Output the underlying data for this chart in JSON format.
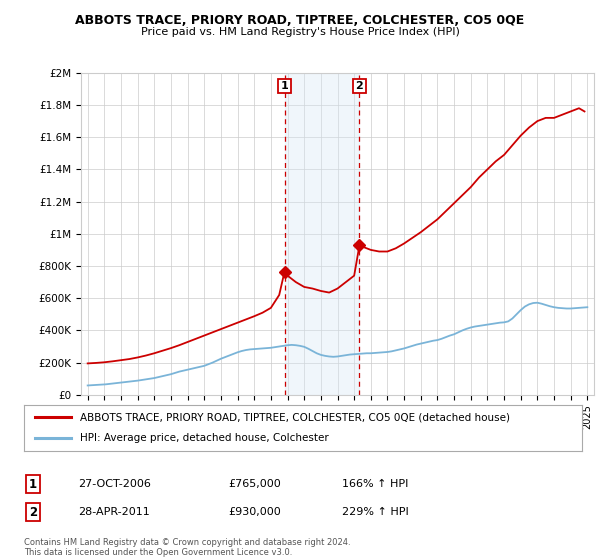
{
  "title": "ABBOTS TRACE, PRIORY ROAD, TIPTREE, COLCHESTER, CO5 0QE",
  "subtitle": "Price paid vs. HM Land Registry's House Price Index (HPI)",
  "legend_line1": "ABBOTS TRACE, PRIORY ROAD, TIPTREE, COLCHESTER, CO5 0QE (detached house)",
  "legend_line2": "HPI: Average price, detached house, Colchester",
  "annotation1_date": "27-OCT-2006",
  "annotation1_price": "£765,000",
  "annotation1_hpi": "166% ↑ HPI",
  "annotation2_date": "28-APR-2011",
  "annotation2_price": "£930,000",
  "annotation2_hpi": "229% ↑ HPI",
  "footer": "Contains HM Land Registry data © Crown copyright and database right 2024.\nThis data is licensed under the Open Government Licence v3.0.",
  "hpi_color": "#7ab4d8",
  "price_color": "#cc0000",
  "vline_color": "#cc0000",
  "shade_color": "#d6e8f5",
  "background_color": "#ffffff",
  "grid_color": "#cccccc",
  "ylim": [
    0,
    2000000
  ],
  "yticks": [
    0,
    200000,
    400000,
    600000,
    800000,
    1000000,
    1200000,
    1400000,
    1600000,
    1800000,
    2000000
  ],
  "ytick_labels": [
    "£0",
    "£200K",
    "£400K",
    "£600K",
    "£800K",
    "£1M",
    "£1.2M",
    "£1.4M",
    "£1.6M",
    "£1.8M",
    "£2M"
  ],
  "hpi_x": [
    1995.0,
    1995.083,
    1995.167,
    1995.25,
    1995.333,
    1995.417,
    1995.5,
    1995.583,
    1995.667,
    1995.75,
    1995.833,
    1995.917,
    1996.0,
    1996.083,
    1996.167,
    1996.25,
    1996.333,
    1996.417,
    1996.5,
    1996.583,
    1996.667,
    1996.75,
    1996.833,
    1996.917,
    1997.0,
    1997.25,
    1997.5,
    1997.75,
    1998.0,
    1998.25,
    1998.5,
    1998.75,
    1999.0,
    1999.25,
    1999.5,
    1999.75,
    2000.0,
    2000.25,
    2000.5,
    2000.75,
    2001.0,
    2001.25,
    2001.5,
    2001.75,
    2002.0,
    2002.25,
    2002.5,
    2002.75,
    2003.0,
    2003.25,
    2003.5,
    2003.75,
    2004.0,
    2004.25,
    2004.5,
    2004.75,
    2005.0,
    2005.25,
    2005.5,
    2005.75,
    2006.0,
    2006.25,
    2006.5,
    2006.75,
    2007.0,
    2007.25,
    2007.5,
    2007.75,
    2008.0,
    2008.25,
    2008.5,
    2008.75,
    2009.0,
    2009.25,
    2009.5,
    2009.75,
    2010.0,
    2010.25,
    2010.5,
    2010.75,
    2011.0,
    2011.25,
    2011.5,
    2011.75,
    2012.0,
    2012.25,
    2012.5,
    2012.75,
    2013.0,
    2013.25,
    2013.5,
    2013.75,
    2014.0,
    2014.25,
    2014.5,
    2014.75,
    2015.0,
    2015.25,
    2015.5,
    2015.75,
    2016.0,
    2016.25,
    2016.5,
    2016.75,
    2017.0,
    2017.25,
    2017.5,
    2017.75,
    2018.0,
    2018.25,
    2018.5,
    2018.75,
    2019.0,
    2019.25,
    2019.5,
    2019.75,
    2020.0,
    2020.25,
    2020.5,
    2020.75,
    2021.0,
    2021.25,
    2021.5,
    2021.75,
    2022.0,
    2022.25,
    2022.5,
    2022.75,
    2023.0,
    2023.25,
    2023.5,
    2023.75,
    2024.0,
    2024.25,
    2024.5,
    2024.75,
    2025.0
  ],
  "hpi_y": [
    58000,
    58500,
    59000,
    59500,
    60000,
    60500,
    61000,
    61500,
    62000,
    62500,
    63000,
    63500,
    64000,
    65000,
    66000,
    67000,
    68000,
    69000,
    70000,
    71000,
    72000,
    73000,
    74000,
    75000,
    76000,
    79000,
    82000,
    85000,
    88000,
    92000,
    96000,
    100000,
    104000,
    110000,
    116000,
    122000,
    128000,
    136000,
    144000,
    150000,
    156000,
    162000,
    168000,
    174000,
    180000,
    190000,
    200000,
    212000,
    224000,
    234000,
    244000,
    254000,
    264000,
    272000,
    278000,
    282000,
    284000,
    286000,
    288000,
    290000,
    292000,
    296000,
    300000,
    304000,
    308000,
    310000,
    308000,
    304000,
    298000,
    286000,
    272000,
    258000,
    248000,
    242000,
    238000,
    236000,
    238000,
    242000,
    246000,
    250000,
    252000,
    254000,
    256000,
    258000,
    258000,
    260000,
    262000,
    264000,
    266000,
    270000,
    276000,
    282000,
    288000,
    296000,
    304000,
    312000,
    318000,
    324000,
    330000,
    336000,
    340000,
    348000,
    358000,
    368000,
    376000,
    388000,
    400000,
    410000,
    418000,
    424000,
    428000,
    432000,
    436000,
    440000,
    444000,
    448000,
    450000,
    456000,
    474000,
    500000,
    526000,
    548000,
    562000,
    570000,
    572000,
    566000,
    558000,
    550000,
    544000,
    540000,
    538000,
    536000,
    536000,
    538000,
    540000,
    542000,
    544000
  ],
  "price_x": [
    1995.0,
    1995.5,
    1996.0,
    1996.5,
    1997.0,
    1997.5,
    1998.0,
    1998.5,
    1999.0,
    1999.5,
    2000.0,
    2000.5,
    2001.0,
    2001.5,
    2002.0,
    2002.5,
    2003.0,
    2003.5,
    2004.0,
    2004.5,
    2005.0,
    2005.5,
    2006.0,
    2006.5,
    2006.82,
    2007.0,
    2007.5,
    2008.0,
    2008.5,
    2009.0,
    2009.5,
    2010.0,
    2010.5,
    2011.0,
    2011.32,
    2011.5,
    2012.0,
    2012.5,
    2013.0,
    2013.5,
    2014.0,
    2014.5,
    2015.0,
    2015.5,
    2016.0,
    2016.5,
    2017.0,
    2017.5,
    2018.0,
    2018.5,
    2019.0,
    2019.5,
    2020.0,
    2020.5,
    2021.0,
    2021.5,
    2022.0,
    2022.5,
    2023.0,
    2023.5,
    2024.0,
    2024.5,
    2024.83
  ],
  "price_y": [
    195000,
    198000,
    202000,
    208000,
    215000,
    222000,
    232000,
    244000,
    258000,
    274000,
    290000,
    308000,
    328000,
    348000,
    368000,
    388000,
    408000,
    428000,
    448000,
    468000,
    488000,
    510000,
    540000,
    620000,
    765000,
    740000,
    700000,
    670000,
    660000,
    645000,
    635000,
    660000,
    700000,
    740000,
    930000,
    920000,
    900000,
    890000,
    890000,
    910000,
    940000,
    975000,
    1010000,
    1050000,
    1090000,
    1140000,
    1190000,
    1240000,
    1290000,
    1350000,
    1400000,
    1450000,
    1490000,
    1550000,
    1610000,
    1660000,
    1700000,
    1720000,
    1720000,
    1740000,
    1760000,
    1780000,
    1760000
  ],
  "sale1_x": 2006.82,
  "sale1_y": 765000,
  "sale2_x": 2011.32,
  "sale2_y": 930000,
  "vline1_x": 2006.82,
  "vline2_x": 2011.32,
  "shade_x1": 2006.82,
  "shade_x2": 2011.32,
  "xlim_left": 1994.6,
  "xlim_right": 2025.4,
  "xtick_years": [
    1995,
    1996,
    1997,
    1998,
    1999,
    2000,
    2001,
    2002,
    2003,
    2004,
    2005,
    2006,
    2007,
    2008,
    2009,
    2010,
    2011,
    2012,
    2013,
    2014,
    2015,
    2016,
    2017,
    2018,
    2019,
    2020,
    2021,
    2022,
    2023,
    2024,
    2025
  ]
}
